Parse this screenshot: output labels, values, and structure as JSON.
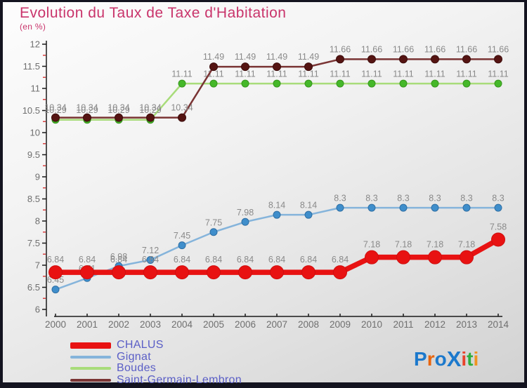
{
  "header": {
    "title": "Evolution du Taux de Taxe d'Habitation",
    "subtitle": "(en %)"
  },
  "chart_data": {
    "type": "line",
    "title": "Evolution du Taux de Taxe d'Habitation",
    "subtitle": "(en %)",
    "x": [
      2000,
      2001,
      2002,
      2003,
      2004,
      2005,
      2006,
      2007,
      2008,
      2009,
      2010,
      2011,
      2012,
      2013,
      2014
    ],
    "ylim": [
      6,
      12
    ],
    "y_major_step": 0.5,
    "y_minor_step": 0.25,
    "grid": "off",
    "legend_position": "bottom-left",
    "axis_color": "#1a1a1a",
    "minor_tick_color": "#d94040",
    "label_color": "#8a8a8a",
    "series": [
      {
        "name": "CHALUS",
        "color": "#e81212",
        "marker_color": "#e81212",
        "marker_stroke": "#cf0f0f",
        "marker_r": 9.5,
        "line_width": 7.5,
        "values": [
          6.84,
          6.84,
          6.84,
          6.84,
          6.84,
          6.84,
          6.84,
          6.84,
          6.84,
          6.84,
          7.18,
          7.18,
          7.18,
          7.18,
          7.58
        ]
      },
      {
        "name": "Gignat",
        "color": "#85b4db",
        "marker_color": "#3f8ecb",
        "marker_stroke": "#2e6ea3",
        "marker_r": 5,
        "line_width": 2.5,
        "values": [
          6.45,
          6.71,
          6.98,
          7.12,
          7.45,
          7.75,
          7.98,
          8.14,
          8.14,
          8.3,
          8.3,
          8.3,
          8.3,
          8.3,
          8.3
        ]
      },
      {
        "name": "Boudes",
        "color": "#a8dc7a",
        "marker_color": "#45b829",
        "marker_stroke": "#36951d",
        "marker_r": 5,
        "line_width": 2.5,
        "values": [
          10.29,
          10.29,
          10.29,
          10.29,
          11.11,
          11.11,
          11.11,
          11.11,
          11.11,
          11.11,
          11.11,
          11.11,
          11.11,
          11.11,
          11.11
        ]
      },
      {
        "name": "Saint-Germain-Lembron",
        "color": "#7a3434",
        "marker_color": "#551412",
        "marker_stroke": "#3d0d0c",
        "marker_r": 5.5,
        "line_width": 2.5,
        "values": [
          10.34,
          10.34,
          10.34,
          10.34,
          10.34,
          11.49,
          11.49,
          11.49,
          11.49,
          11.66,
          11.66,
          11.66,
          11.66,
          11.66,
          11.66
        ]
      }
    ],
    "draw_order": [
      1,
      2,
      3,
      0
    ]
  },
  "logo": {
    "name": "Proxiti",
    "letters": [
      {
        "ch": "P",
        "color": "#1c79cc"
      },
      {
        "ch": "r",
        "color": "#e8650d"
      },
      {
        "ch": "o",
        "color": "#1c79cc"
      },
      {
        "ch": "X",
        "color": "#1c79cc",
        "big": true
      },
      {
        "ch": "i",
        "color": "#e8432c"
      },
      {
        "ch": "t",
        "color": "#2fae3e"
      },
      {
        "ch": "i",
        "color": "#ef9421"
      }
    ]
  }
}
